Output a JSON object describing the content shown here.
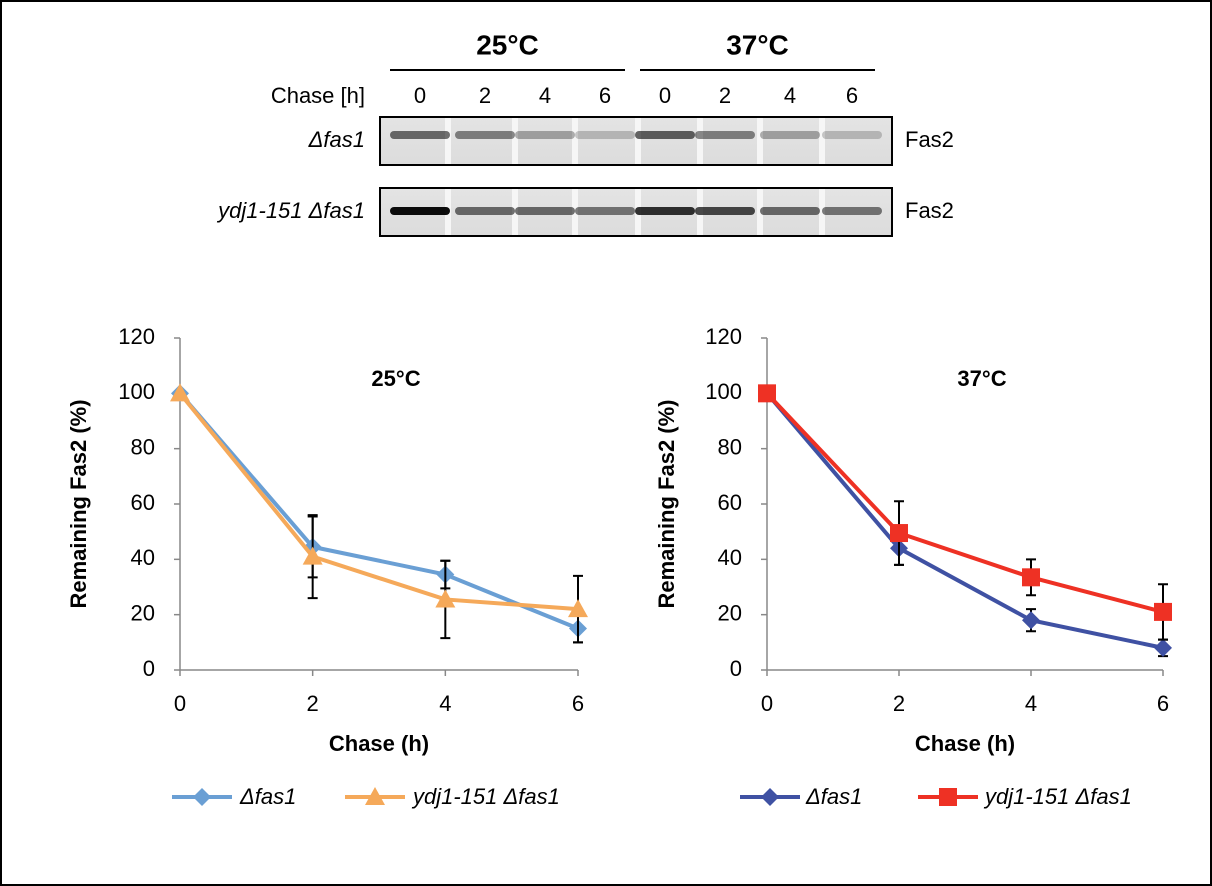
{
  "blot": {
    "chase_label": "Chase [h]",
    "groups": [
      {
        "label": "25°C",
        "lanes": [
          0,
          2,
          4,
          6
        ]
      },
      {
        "label": "37°C",
        "lanes": [
          0,
          2,
          4,
          6
        ]
      }
    ],
    "rows": [
      {
        "strain": "Δfas1",
        "protein": "Fas2"
      },
      {
        "strain": "ydj1-151 Δfas1",
        "protein": "Fas2"
      }
    ]
  },
  "chart_data": [
    {
      "type": "line",
      "title": "25°C",
      "x_label": "Chase (h)",
      "y_label": "Remaining Fas2 (%)",
      "x": [
        0,
        2,
        4,
        6
      ],
      "xlim": [
        0,
        6
      ],
      "xticks": [
        0,
        2,
        4,
        6
      ],
      "ylim": [
        0,
        120
      ],
      "yticks": [
        0,
        20,
        40,
        60,
        80,
        100,
        120
      ],
      "legend": "bottom",
      "series": [
        {
          "name": "Δfas1",
          "color": "#6a9fd4",
          "marker": "diamond",
          "values": [
            100,
            44.5,
            34.5,
            15
          ],
          "errors": [
            0,
            11,
            5,
            5
          ]
        },
        {
          "name": "ydj1-151 Δfas1",
          "color": "#f5a95a",
          "marker": "triangle",
          "values": [
            100,
            41,
            25.5,
            22
          ],
          "errors": [
            0,
            15,
            14,
            12
          ]
        }
      ]
    },
    {
      "type": "line",
      "title": "37°C",
      "x_label": "Chase (h)",
      "y_label": "Remaining Fas2 (%)",
      "x": [
        0,
        2,
        4,
        6
      ],
      "xlim": [
        0,
        6
      ],
      "xticks": [
        0,
        2,
        4,
        6
      ],
      "ylim": [
        0,
        120
      ],
      "yticks": [
        0,
        20,
        40,
        60,
        80,
        100,
        120
      ],
      "legend": "bottom",
      "series": [
        {
          "name": "Δfas1",
          "color": "#3f51a3",
          "marker": "diamond",
          "values": [
            100,
            44,
            18,
            8
          ],
          "errors": [
            0,
            6,
            4,
            3
          ]
        },
        {
          "name": "ydj1-151 Δfas1",
          "color": "#ee3124",
          "marker": "square",
          "values": [
            100,
            49.5,
            33.5,
            21
          ],
          "errors": [
            0,
            11.5,
            6.5,
            10
          ]
        }
      ]
    }
  ]
}
